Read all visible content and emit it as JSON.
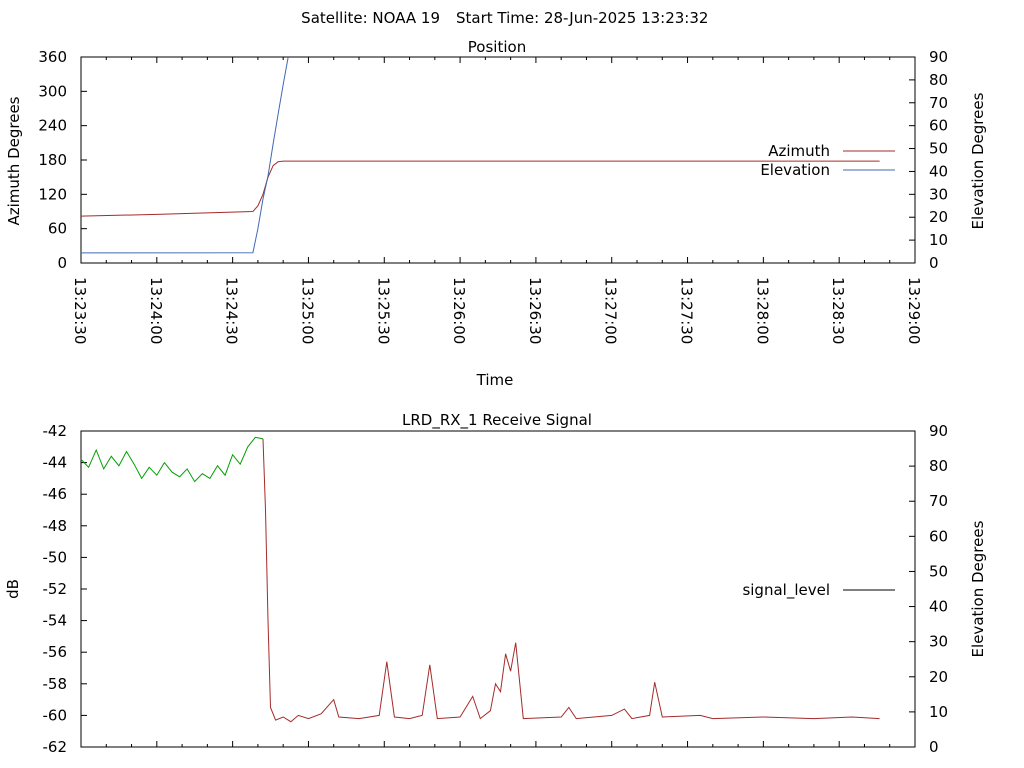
{
  "header": {
    "satellite": "Satellite: NOAA 19",
    "start_time": "Start Time: 28-Jun-2025 13:23:32"
  },
  "chart_data": [
    {
      "type": "line",
      "title": "Position",
      "xlabel": "Time",
      "ylabel": "Azimuth Degrees",
      "y2label": "Elevation Degrees",
      "xlim": [
        "13:23:30",
        "13:29:00"
      ],
      "ylim": [
        0,
        360
      ],
      "y2lim": [
        0,
        90
      ],
      "yticks": [
        0,
        60,
        120,
        180,
        240,
        300,
        360
      ],
      "y2ticks": [
        0,
        10,
        20,
        30,
        40,
        50,
        60,
        70,
        80,
        90
      ],
      "xticks": [
        "13:23:30",
        "13:24:00",
        "13:24:30",
        "13:25:00",
        "13:25:30",
        "13:26:00",
        "13:26:30",
        "13:27:00",
        "13:27:30",
        "13:28:00",
        "13:28:30",
        "13:29:00"
      ],
      "grid": false,
      "legend": "right",
      "series": [
        {
          "name": "Azimuth",
          "axis": "left",
          "color": "#a52a2a",
          "points": [
            [
              "13:23:30",
              82
            ],
            [
              "13:24:00",
              85
            ],
            [
              "13:24:38",
              90
            ],
            [
              "13:24:40",
              100
            ],
            [
              "13:24:42",
              120
            ],
            [
              "13:24:44",
              150
            ],
            [
              "13:24:46",
              170
            ],
            [
              "13:24:48",
              177
            ],
            [
              "13:24:50",
              178
            ],
            [
              "13:28:46",
              178
            ]
          ]
        },
        {
          "name": "Elevation",
          "axis": "right",
          "color": "#4169b0",
          "points": [
            [
              "13:23:30",
              4.4
            ],
            [
              "13:24:38",
              4.5
            ],
            [
              "13:24:40",
              15
            ],
            [
              "13:24:42",
              28
            ],
            [
              "13:24:44",
              38
            ],
            [
              "13:24:46",
              52
            ],
            [
              "13:24:48",
              65
            ],
            [
              "13:24:50",
              78
            ],
            [
              "13:24:52",
              90
            ]
          ]
        }
      ]
    },
    {
      "type": "line",
      "title": "LRD_RX_1 Receive Signal",
      "xlabel": "",
      "ylabel": "dB",
      "y2label": "Elevation Degrees",
      "xlim": [
        "13:23:30",
        "13:29:00"
      ],
      "ylim": [
        -62,
        -42
      ],
      "y2lim": [
        0,
        90
      ],
      "yticks": [
        -62,
        -60,
        -58,
        -56,
        -54,
        -52,
        -50,
        -48,
        -46,
        -44,
        -42
      ],
      "y2ticks": [
        0,
        10,
        20,
        30,
        40,
        50,
        60,
        70,
        80,
        90
      ],
      "grid": false,
      "legend": "right",
      "legend_color": "#000000",
      "series": [
        {
          "name": "signal_level",
          "segments": [
            {
              "color": "#00a000",
              "points": [
                [
                  "13:23:30",
                  -43.8
                ],
                [
                  "13:23:33",
                  -44.3
                ],
                [
                  "13:23:36",
                  -43.2
                ],
                [
                  "13:23:39",
                  -44.4
                ],
                [
                  "13:23:42",
                  -43.6
                ],
                [
                  "13:23:45",
                  -44.2
                ],
                [
                  "13:23:48",
                  -43.3
                ],
                [
                  "13:23:51",
                  -44.1
                ],
                [
                  "13:23:54",
                  -45.0
                ],
                [
                  "13:23:57",
                  -44.3
                ],
                [
                  "13:24:00",
                  -44.8
                ],
                [
                  "13:24:03",
                  -44.0
                ],
                [
                  "13:24:06",
                  -44.6
                ],
                [
                  "13:24:09",
                  -44.9
                ],
                [
                  "13:24:12",
                  -44.4
                ],
                [
                  "13:24:15",
                  -45.2
                ],
                [
                  "13:24:18",
                  -44.7
                ],
                [
                  "13:24:21",
                  -45.0
                ],
                [
                  "13:24:24",
                  -44.2
                ],
                [
                  "13:24:27",
                  -44.8
                ],
                [
                  "13:24:30",
                  -43.5
                ],
                [
                  "13:24:33",
                  -44.1
                ],
                [
                  "13:24:36",
                  -43.0
                ],
                [
                  "13:24:39",
                  -42.4
                ],
                [
                  "13:24:42",
                  -42.5
                ]
              ]
            },
            {
              "color": "#a52a2a",
              "points": [
                [
                  "13:24:42",
                  -42.5
                ],
                [
                  "13:24:43",
                  -47
                ],
                [
                  "13:24:44",
                  -54
                ],
                [
                  "13:24:45",
                  -59.5
                ],
                [
                  "13:24:47",
                  -60.3
                ],
                [
                  "13:24:50",
                  -60.1
                ],
                [
                  "13:24:53",
                  -60.4
                ],
                [
                  "13:24:56",
                  -60.0
                ],
                [
                  "13:25:00",
                  -60.2
                ],
                [
                  "13:25:05",
                  -59.9
                ],
                [
                  "13:25:10",
                  -59.0
                ],
                [
                  "13:25:12",
                  -60.1
                ],
                [
                  "13:25:20",
                  -60.2
                ],
                [
                  "13:25:28",
                  -60.0
                ],
                [
                  "13:25:31",
                  -56.6
                ],
                [
                  "13:25:34",
                  -60.1
                ],
                [
                  "13:25:40",
                  -60.2
                ],
                [
                  "13:25:45",
                  -60.0
                ],
                [
                  "13:25:48",
                  -56.8
                ],
                [
                  "13:25:51",
                  -60.2
                ],
                [
                  "13:26:00",
                  -60.1
                ],
                [
                  "13:26:05",
                  -58.8
                ],
                [
                  "13:26:08",
                  -60.2
                ],
                [
                  "13:26:12",
                  -59.7
                ],
                [
                  "13:26:14",
                  -58.0
                ],
                [
                  "13:26:16",
                  -58.5
                ],
                [
                  "13:26:18",
                  -56.1
                ],
                [
                  "13:26:20",
                  -57.2
                ],
                [
                  "13:26:22",
                  -55.4
                ],
                [
                  "13:26:25",
                  -60.2
                ],
                [
                  "13:26:40",
                  -60.1
                ],
                [
                  "13:26:43",
                  -59.5
                ],
                [
                  "13:26:46",
                  -60.2
                ],
                [
                  "13:27:00",
                  -60.0
                ],
                [
                  "13:27:05",
                  -59.6
                ],
                [
                  "13:27:08",
                  -60.2
                ],
                [
                  "13:27:15",
                  -60.0
                ],
                [
                  "13:27:17",
                  -57.9
                ],
                [
                  "13:27:20",
                  -60.1
                ],
                [
                  "13:27:35",
                  -60.0
                ],
                [
                  "13:27:40",
                  -60.2
                ],
                [
                  "13:28:00",
                  -60.1
                ],
                [
                  "13:28:20",
                  -60.2
                ],
                [
                  "13:28:35",
                  -60.1
                ],
                [
                  "13:28:46",
                  -60.2
                ]
              ]
            }
          ]
        }
      ]
    }
  ]
}
